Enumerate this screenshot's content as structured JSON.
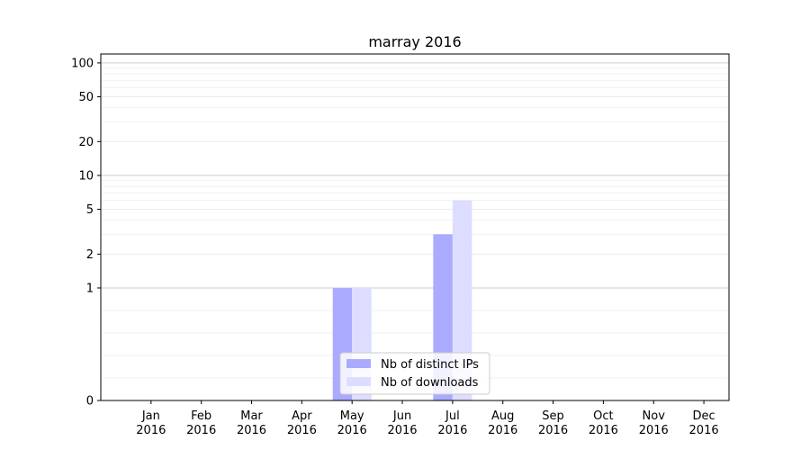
{
  "chart_data": {
    "type": "bar",
    "title": "marray 2016",
    "xlabel": "",
    "ylabel": "",
    "categories": [
      [
        "Jan",
        "2016"
      ],
      [
        "Feb",
        "2016"
      ],
      [
        "Mar",
        "2016"
      ],
      [
        "Apr",
        "2016"
      ],
      [
        "May",
        "2016"
      ],
      [
        "Jun",
        "2016"
      ],
      [
        "Jul",
        "2016"
      ],
      [
        "Aug",
        "2016"
      ],
      [
        "Sep",
        "2016"
      ],
      [
        "Oct",
        "2016"
      ],
      [
        "Nov",
        "2016"
      ],
      [
        "Dec",
        "2016"
      ]
    ],
    "series": [
      {
        "name": "Nb of distinct IPs",
        "color": "#aaaaff",
        "values": [
          0,
          0,
          0,
          0,
          1,
          0,
          3,
          0,
          0,
          0,
          0,
          0
        ]
      },
      {
        "name": "Nb of downloads",
        "color": "#ddddff",
        "values": [
          0,
          0,
          0,
          0,
          1,
          0,
          6,
          0,
          0,
          0,
          0,
          0
        ]
      }
    ],
    "y_scale": "symlog",
    "ylim": [
      0,
      120
    ],
    "y_ticks": [
      {
        "value": 0,
        "label": "0"
      },
      {
        "value": 1,
        "label": "1"
      },
      {
        "value": 2,
        "label": "2"
      },
      {
        "value": 5,
        "label": "5"
      },
      {
        "value": 10,
        "label": "10"
      },
      {
        "value": 20,
        "label": "20"
      },
      {
        "value": 50,
        "label": "50"
      },
      {
        "value": 100,
        "label": "100"
      }
    ],
    "grid": true,
    "legend_position": "bottom-center"
  }
}
